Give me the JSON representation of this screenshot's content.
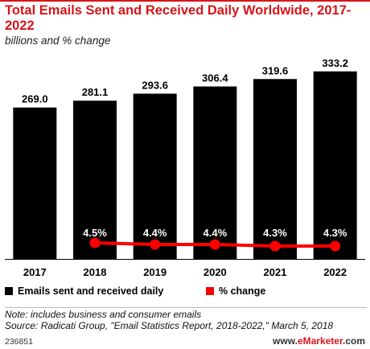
{
  "header": {
    "title": "Total Emails Sent and Received Daily Worldwide, 2017-2022",
    "subtitle": "billions and % change"
  },
  "legend": {
    "bars_label": "Emails sent and received daily",
    "line_label": "% change"
  },
  "footer": {
    "note": "Note: includes business and consumer emails",
    "source": "Source: Radicati Group, \"Email Statistics Report, 2018-2022,\" March 5, 2018",
    "chart_id": "236851",
    "brand_prefix": "www.",
    "brand_name": "eMarketer",
    "brand_suffix": ".com"
  },
  "colors": {
    "bars": "#000000",
    "line": "#ff0000",
    "title": "#d7141a"
  },
  "chart_data": {
    "type": "bar",
    "title": "Total Emails Sent and Received Daily Worldwide, 2017-2022",
    "subtitle": "billions and % change",
    "categories": [
      "2017",
      "2018",
      "2019",
      "2020",
      "2021",
      "2022"
    ],
    "series": [
      {
        "name": "Emails sent and received daily",
        "type": "bar",
        "values": [
          269.0,
          281.1,
          293.6,
          306.4,
          319.6,
          333.2
        ],
        "labels": [
          "269.0",
          "281.1",
          "293.6",
          "306.4",
          "319.6",
          "333.2"
        ]
      },
      {
        "name": "% change",
        "type": "line",
        "values": [
          null,
          4.5,
          4.4,
          4.4,
          4.3,
          4.3
        ],
        "labels": [
          "",
          "4.5%",
          "4.4%",
          "4.4%",
          "4.3%",
          "4.3%"
        ]
      }
    ],
    "ylim": [
      0,
      340
    ],
    "grid": false,
    "legend_position": "bottom"
  }
}
